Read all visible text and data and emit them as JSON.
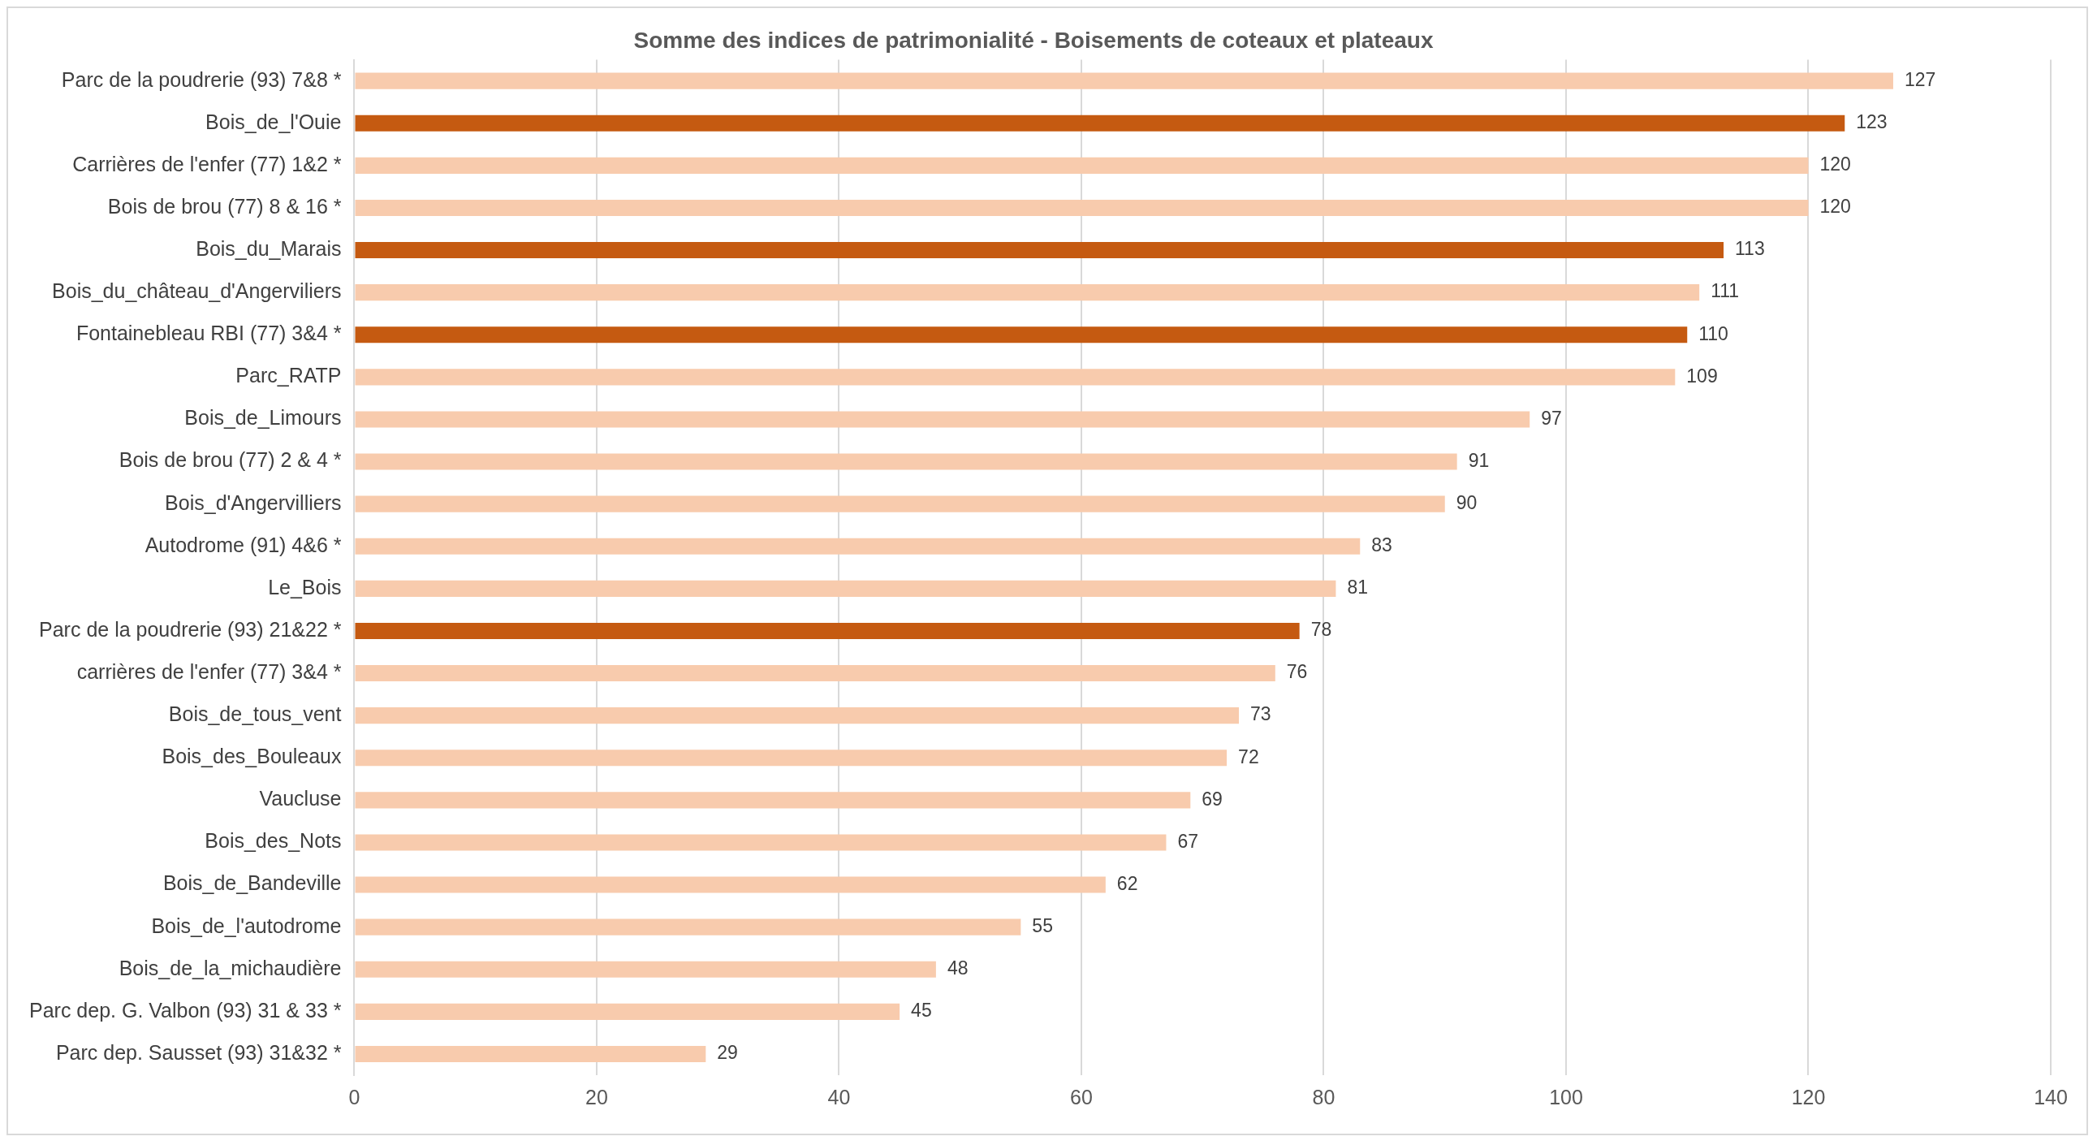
{
  "chart_data": {
    "type": "bar",
    "orientation": "horizontal",
    "title": "Somme des indices de patrimonialité - Boisements de coteaux et plateaux",
    "categories": [
      "Parc de la poudrerie (93) 7&8 *",
      "Bois_de_l'Ouie",
      "Carrières de l'enfer (77) 1&2 *",
      "Bois de brou (77) 8 & 16 *",
      "Bois_du_Marais",
      "Bois_du_château_d'Angerviliers",
      "Fontainebleau RBI (77) 3&4 *",
      "Parc_RATP",
      "Bois_de_Limours",
      "Bois de brou (77) 2 & 4 *",
      "Bois_d'Angervilliers",
      "Autodrome (91) 4&6 *",
      "Le_Bois",
      "Parc de la poudrerie (93) 21&22 *",
      "carrières de l'enfer (77) 3&4 *",
      "Bois_de_tous_vent",
      "Bois_des_Bouleaux",
      "Vaucluse",
      "Bois_des_Nots",
      "Bois_de_Bandeville",
      "Bois_de_l'autodrome",
      "Bois_de_la_michaudière",
      "Parc dep. G. Valbon (93) 31 & 33 *",
      "Parc dep. Sausset (93) 31&32 *"
    ],
    "values": [
      127,
      123,
      120,
      120,
      113,
      111,
      110,
      109,
      97,
      91,
      90,
      83,
      81,
      78,
      76,
      73,
      72,
      69,
      67,
      62,
      55,
      48,
      45,
      29
    ],
    "colors": [
      "#f8cbad",
      "#c55a11",
      "#f8cbad",
      "#f8cbad",
      "#c55a11",
      "#f8cbad",
      "#c55a11",
      "#f8cbad",
      "#f8cbad",
      "#f8cbad",
      "#f8cbad",
      "#f8cbad",
      "#f8cbad",
      "#c55a11",
      "#f8cbad",
      "#f8cbad",
      "#f8cbad",
      "#f8cbad",
      "#f8cbad",
      "#f8cbad",
      "#f8cbad",
      "#f8cbad",
      "#f8cbad",
      "#f8cbad"
    ],
    "xlim": [
      0,
      140
    ],
    "xticks": [
      0,
      20,
      40,
      60,
      80,
      100,
      120,
      140
    ],
    "grid": "x",
    "data_labels": true,
    "legend": false
  }
}
